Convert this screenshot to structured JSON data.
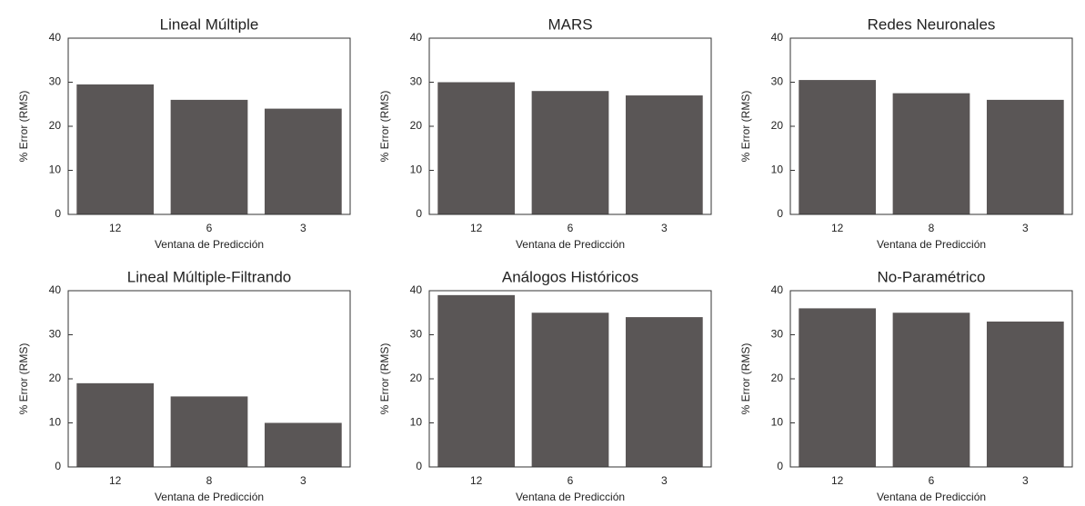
{
  "chart_data": [
    {
      "type": "bar",
      "title": "Lineal Múltiple",
      "xlabel": "Ventana de Predicción",
      "ylabel": "% Error (RMS)",
      "categories": [
        "12",
        "6",
        "3"
      ],
      "values": [
        29.5,
        26,
        24
      ],
      "color": "#5a5656",
      "ylim": [
        0,
        40
      ],
      "yticks": [
        0,
        10,
        20,
        30,
        40
      ]
    },
    {
      "type": "bar",
      "title": "MARS",
      "xlabel": "Ventana de Predicción",
      "ylabel": "% Error (RMS)",
      "categories": [
        "12",
        "6",
        "3"
      ],
      "values": [
        30,
        28,
        27
      ],
      "color": "#5a5656",
      "ylim": [
        0,
        40
      ],
      "yticks": [
        0,
        10,
        20,
        30,
        40
      ]
    },
    {
      "type": "bar",
      "title": "Redes Neuronales",
      "xlabel": "Ventana de Predicción",
      "ylabel": "% Error (RMS)",
      "categories": [
        "12",
        "8",
        "3"
      ],
      "values": [
        30.5,
        27.5,
        26
      ],
      "color": "#5a5656",
      "ylim": [
        0,
        40
      ],
      "yticks": [
        0,
        10,
        20,
        30,
        40
      ]
    },
    {
      "type": "bar",
      "title": "Lineal Múltiple-Filtrando",
      "xlabel": "Ventana de Predicción",
      "ylabel": "% Error (RMS)",
      "categories": [
        "12",
        "8",
        "3"
      ],
      "values": [
        19,
        16,
        10
      ],
      "color": "#5a5656",
      "ylim": [
        0,
        40
      ],
      "yticks": [
        0,
        10,
        20,
        30,
        40
      ]
    },
    {
      "type": "bar",
      "title": "Análogos Históricos",
      "xlabel": "Ventana de Predicción",
      "ylabel": "% Error (RMS)",
      "categories": [
        "12",
        "6",
        "3"
      ],
      "values": [
        39,
        35,
        34
      ],
      "color": "#5a5656",
      "ylim": [
        0,
        40
      ],
      "yticks": [
        0,
        10,
        20,
        30,
        40
      ]
    },
    {
      "type": "bar",
      "title": "No-Paramétrico",
      "xlabel": "Ventana de Predicción",
      "ylabel": "% Error (RMS)",
      "categories": [
        "12",
        "6",
        "3"
      ],
      "values": [
        36,
        35,
        33
      ],
      "color": "#5a5656",
      "ylim": [
        0,
        40
      ],
      "yticks": [
        0,
        10,
        20,
        30,
        40
      ]
    }
  ]
}
